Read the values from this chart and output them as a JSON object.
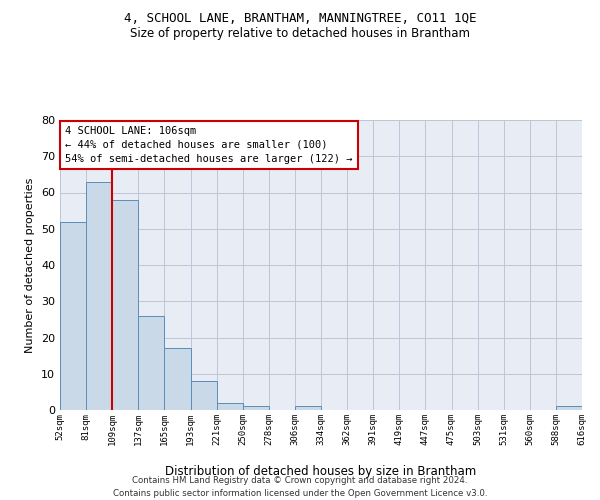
{
  "title": "4, SCHOOL LANE, BRANTHAM, MANNINGTREE, CO11 1QE",
  "subtitle": "Size of property relative to detached houses in Brantham",
  "xlabel": "Distribution of detached houses by size in Brantham",
  "ylabel": "Number of detached properties",
  "bar_values": [
    52,
    63,
    58,
    26,
    17,
    8,
    2,
    1,
    0,
    1,
    0,
    0,
    0,
    0,
    0,
    0,
    0,
    0,
    0,
    1
  ],
  "bin_labels": [
    "52sqm",
    "81sqm",
    "109sqm",
    "137sqm",
    "165sqm",
    "193sqm",
    "221sqm",
    "250sqm",
    "278sqm",
    "306sqm",
    "334sqm",
    "362sqm",
    "391sqm",
    "419sqm",
    "447sqm",
    "475sqm",
    "503sqm",
    "531sqm",
    "560sqm",
    "588sqm",
    "616sqm"
  ],
  "bar_color": "#c9d9e8",
  "bar_edge_color": "#5b8db8",
  "grid_color": "#c0c4d8",
  "bg_color": "#e8ecf5",
  "vline_color": "#cc0000",
  "vline_pos": 2,
  "annotation_text": "4 SCHOOL LANE: 106sqm\n← 44% of detached houses are smaller (100)\n54% of semi-detached houses are larger (122) →",
  "annotation_box_color": "#cc0000",
  "footer_text": "Contains HM Land Registry data © Crown copyright and database right 2024.\nContains public sector information licensed under the Open Government Licence v3.0.",
  "ylim": [
    0,
    80
  ],
  "yticks": [
    0,
    10,
    20,
    30,
    40,
    50,
    60,
    70,
    80
  ],
  "title_fontsize": 9,
  "subtitle_fontsize": 8.5
}
